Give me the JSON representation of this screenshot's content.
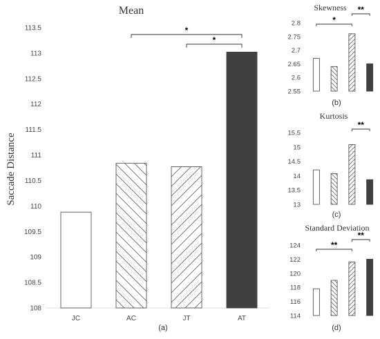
{
  "chart_data": [
    {
      "type": "bar",
      "title": "Mean",
      "ylabel": "Saccade Distance",
      "xlabel": "",
      "panel_label": "(a)",
      "categories": [
        "JC",
        "AC",
        "JT",
        "AT"
      ],
      "values": [
        109.88,
        110.84,
        110.77,
        113.02
      ],
      "ylim": [
        108,
        113.5
      ],
      "yticks": [
        "108",
        "108.5",
        "109",
        "109.5",
        "110",
        "110.5",
        "111",
        "111.5",
        "112",
        "112.5",
        "113",
        "113.5"
      ],
      "bar_styles": [
        "white",
        "hatch-back",
        "hatch-fwd",
        "dark"
      ],
      "significance": [
        {
          "from": 1,
          "to": 3,
          "label": "*"
        },
        {
          "from": 2,
          "to": 3,
          "label": "*"
        }
      ]
    },
    {
      "type": "bar",
      "title": "Skewness",
      "panel_label": "(b)",
      "categories": [
        "JC",
        "AC",
        "JT",
        "AT"
      ],
      "values": [
        2.67,
        2.64,
        2.76,
        2.65
      ],
      "ylim": [
        2.55,
        2.8
      ],
      "yticks": [
        "2.55",
        "2.6",
        "2.65",
        "2.7",
        "2.75",
        "2.8"
      ],
      "bar_styles": [
        "white",
        "hatch-back",
        "hatch-fwd",
        "dark"
      ],
      "significance": [
        {
          "from": 0,
          "to": 2,
          "label": "*"
        },
        {
          "from": 2,
          "to": 3,
          "label": "**"
        }
      ]
    },
    {
      "type": "bar",
      "title": "Kurtosis",
      "panel_label": "(c)",
      "categories": [
        "JC",
        "AC",
        "JT",
        "AT"
      ],
      "values": [
        14.2,
        14.07,
        15.08,
        13.86
      ],
      "ylim": [
        13,
        15.5
      ],
      "yticks": [
        "13",
        "13.5",
        "14",
        "14.5",
        "15",
        "15.5"
      ],
      "bar_styles": [
        "white",
        "hatch-back",
        "hatch-fwd",
        "dark"
      ],
      "significance": [
        {
          "from": 2,
          "to": 3,
          "label": "**"
        }
      ]
    },
    {
      "type": "bar",
      "title": "Standard Deviation",
      "panel_label": "(d)",
      "categories": [
        "JC",
        "AC",
        "JT",
        "AT"
      ],
      "values": [
        117.8,
        119.0,
        121.6,
        122.0
      ],
      "ylim": [
        114,
        124
      ],
      "yticks": [
        "114",
        "116",
        "118",
        "120",
        "122",
        "124"
      ],
      "bar_styles": [
        "white",
        "hatch-back",
        "hatch-fwd",
        "dark"
      ],
      "significance": [
        {
          "from": 0,
          "to": 2,
          "label": "**"
        },
        {
          "from": 2,
          "to": 3,
          "label": "**"
        }
      ]
    }
  ],
  "colors": {
    "dark_bar": "#404040",
    "outline": "#555555",
    "bracket": "#333333"
  }
}
